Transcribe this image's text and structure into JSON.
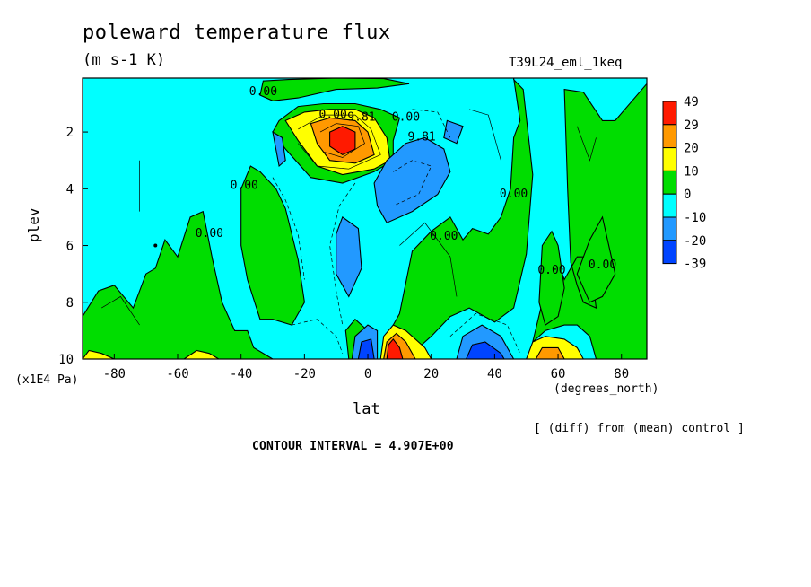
{
  "chart_data": {
    "type": "heatmap",
    "title": "poleward temperature flux",
    "units_label": "(m s-1 K)",
    "run_label": "T39L24_eml_1keq",
    "xlabel": "lat",
    "x_units_label": "(degrees_north)",
    "ylabel": "plev",
    "y_units_label": "(x1E4 Pa)",
    "xlim": [
      -90,
      88
    ],
    "ylim": [
      10,
      0.1
    ],
    "x_ticks": [
      "-80",
      "-60",
      "-40",
      "-20",
      "0",
      "20",
      "40",
      "60",
      "80"
    ],
    "x_tick_values": [
      -80,
      -60,
      -40,
      -20,
      0,
      20,
      40,
      60,
      80
    ],
    "y_ticks": [
      "2",
      "4",
      "6",
      "8",
      "10"
    ],
    "y_tick_values": [
      2,
      4,
      6,
      8,
      10
    ],
    "colorbar": {
      "labels": [
        "49",
        "29",
        "20",
        "10",
        "0",
        "-10",
        "-20",
        "-39"
      ],
      "colors": [
        "#ff1a00",
        "#ff9900",
        "#ffff00",
        "#00dd00",
        "#00ffff",
        "#2299ff",
        "#0044ff"
      ]
    },
    "contour_labels": [
      {
        "text": "0.00",
        "x": -33,
        "y": 0.7
      },
      {
        "text": "0.00",
        "x": -11,
        "y": 1.5
      },
      {
        "text": "9.81",
        "x": -2,
        "y": 1.6
      },
      {
        "text": "0.00",
        "x": 12,
        "y": 1.6
      },
      {
        "text": "9.81",
        "x": 17,
        "y": 2.3
      },
      {
        "text": "0.00",
        "x": -39,
        "y": 4.0
      },
      {
        "text": "0.00",
        "x": -50,
        "y": 5.7
      },
      {
        "text": "0.00",
        "x": 24,
        "y": 5.8
      },
      {
        "text": "0.00",
        "x": 46,
        "y": 4.3
      },
      {
        "text": "0.00",
        "x": 58,
        "y": 7.0
      },
      {
        "text": "0.00",
        "x": 74,
        "y": 6.8
      }
    ],
    "grid": false,
    "legend": "right"
  },
  "annotations": {
    "note": "[ (diff) from (mean) control ]",
    "contour_interval": "CONTOUR INTERVAL = 4.907E+00"
  }
}
